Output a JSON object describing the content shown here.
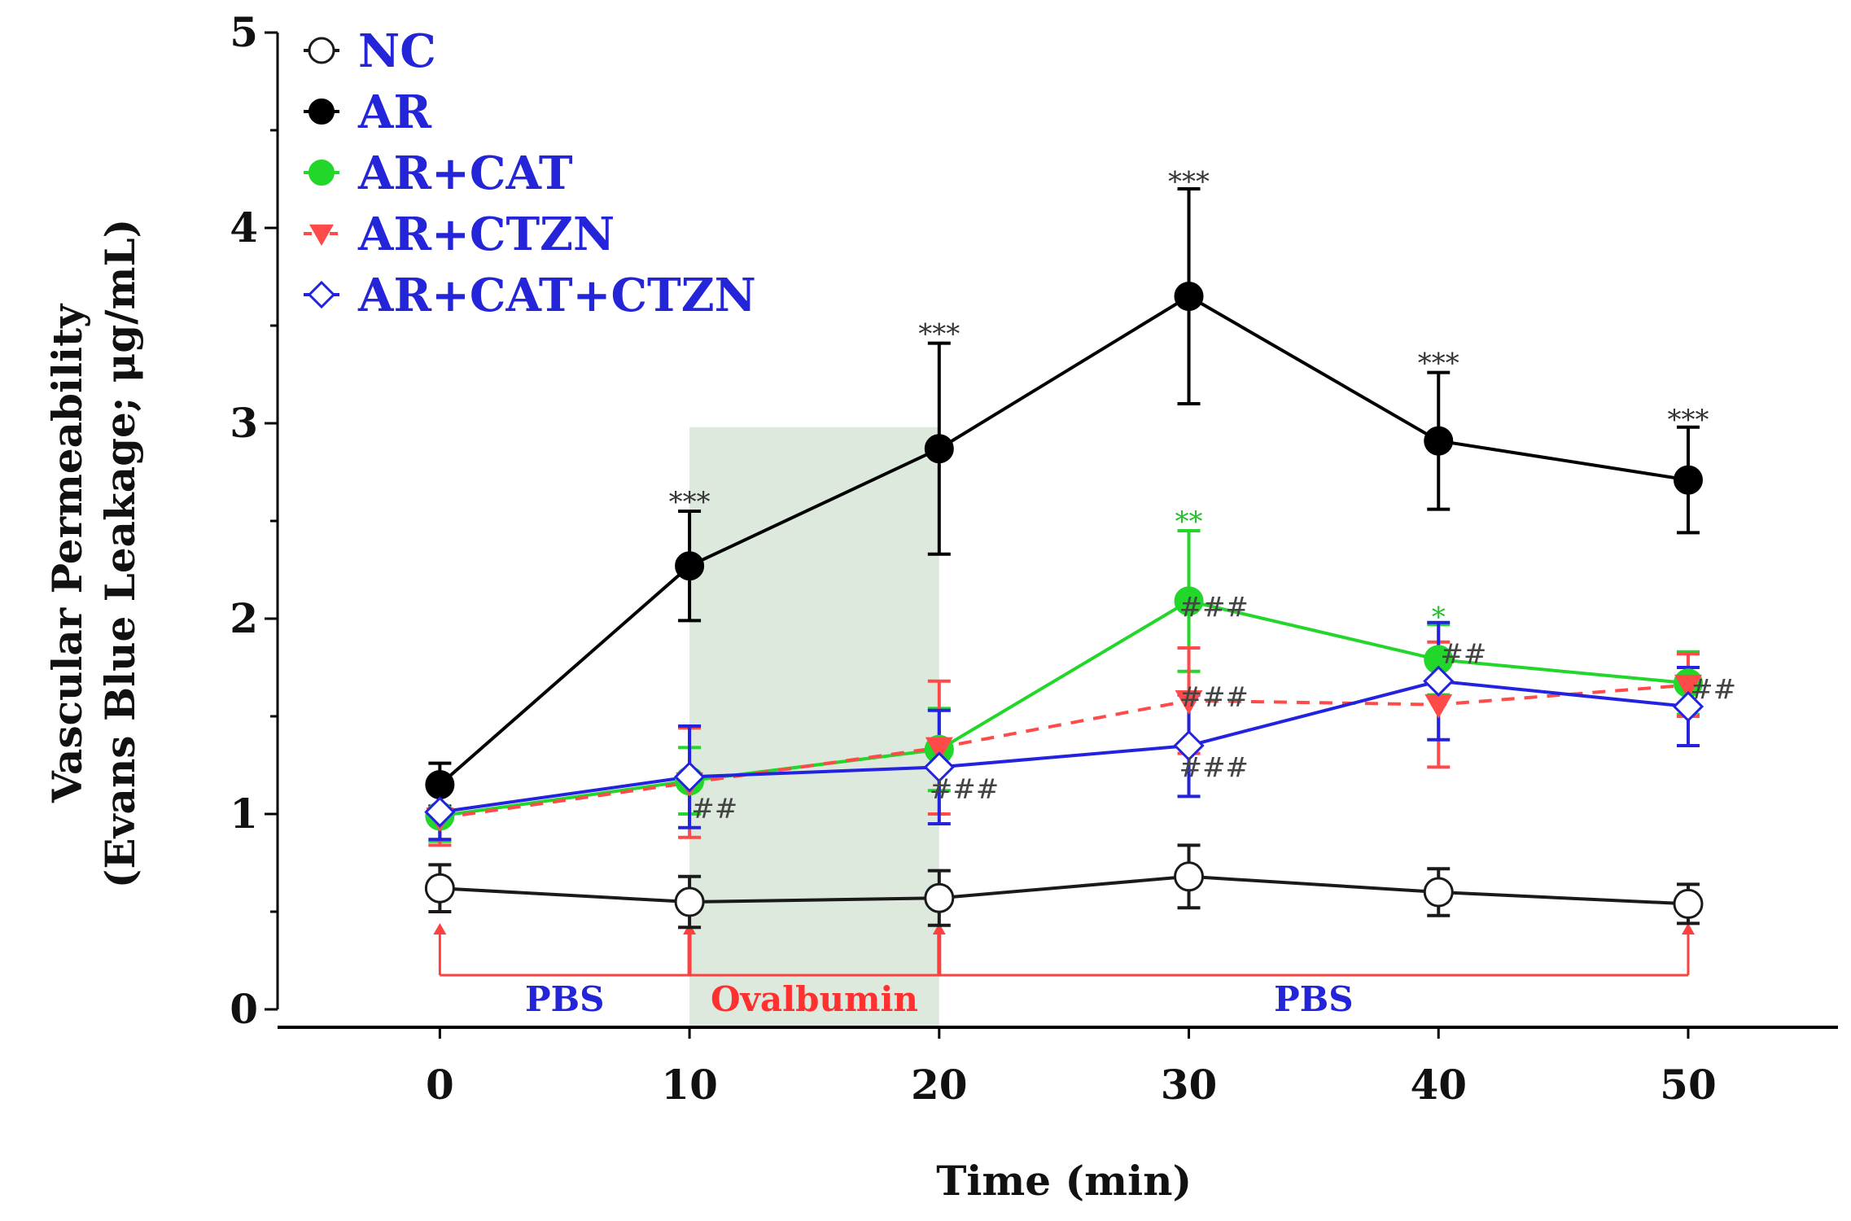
{
  "chart_data": {
    "type": "line",
    "title": "",
    "xlabel": "Time (min)",
    "ylabel_line1": "Vascular Permeability",
    "ylabel_line2": "(Evans Blue Leakage; μg/mL)",
    "x": [
      0,
      10,
      20,
      30,
      40,
      50
    ],
    "x_ticks": [
      "0",
      "10",
      "20",
      "30",
      "40",
      "50"
    ],
    "y_ticks": [
      "0",
      "1",
      "2",
      "3",
      "4",
      "5"
    ],
    "xlim": [
      -6.5,
      56
    ],
    "ylim": [
      0,
      5
    ],
    "shaded_region": {
      "x_start": 10,
      "x_end": 20,
      "y_top": 2.98,
      "color": "#dde9dc"
    },
    "series": [
      {
        "name": "NC",
        "color": "#1a1a1a",
        "marker": "circle-open",
        "line": "solid",
        "values": [
          0.62,
          0.55,
          0.57,
          0.68,
          0.6,
          0.54
        ],
        "errors": [
          0.12,
          0.13,
          0.14,
          0.16,
          0.12,
          0.1
        ]
      },
      {
        "name": "AR",
        "color": "#000000",
        "marker": "circle-filled",
        "line": "solid",
        "values": [
          1.15,
          2.27,
          2.87,
          3.65,
          2.91,
          2.71
        ],
        "errors": [
          0.11,
          0.28,
          0.54,
          0.55,
          0.35,
          0.27
        ]
      },
      {
        "name": "AR+CAT",
        "color": "#22d62a",
        "marker": "circle-filled",
        "line": "solid",
        "values": [
          0.99,
          1.17,
          1.33,
          2.09,
          1.79,
          1.67
        ],
        "errors": [
          0.13,
          0.17,
          0.21,
          0.36,
          0.18,
          0.16
        ]
      },
      {
        "name": "AR+CTZN",
        "color": "#ff4a4a",
        "marker": "triangle-down",
        "line": "dashed",
        "values": [
          0.98,
          1.16,
          1.34,
          1.58,
          1.56,
          1.66
        ],
        "errors": [
          0.14,
          0.28,
          0.34,
          0.27,
          0.32,
          0.16
        ]
      },
      {
        "name": "AR+CAT+CTZN",
        "color": "#2222e0",
        "marker": "diamond-open",
        "line": "solid",
        "values": [
          1.01,
          1.19,
          1.24,
          1.35,
          1.68,
          1.55
        ],
        "errors": [
          0.14,
          0.26,
          0.29,
          0.26,
          0.3,
          0.2
        ]
      }
    ],
    "legend": {
      "placement": "top-left",
      "color": "#2424d8",
      "labels": [
        "NC",
        "AR",
        "AR+CAT",
        "AR+CTZN",
        "AR+CAT+CTZN"
      ]
    },
    "significance": [
      {
        "text": "***",
        "x": 10,
        "y": 2.6,
        "color": "#333333"
      },
      {
        "text": "***",
        "x": 20,
        "y": 3.46,
        "color": "#333333"
      },
      {
        "text": "***",
        "x": 30,
        "y": 4.24,
        "color": "#333333"
      },
      {
        "text": "***",
        "x": 40,
        "y": 3.31,
        "color": "#333333"
      },
      {
        "text": "***",
        "x": 50,
        "y": 3.02,
        "color": "#333333"
      },
      {
        "text": "**",
        "x": 30,
        "y": 2.5,
        "color": "#22c02a"
      },
      {
        "text": "*",
        "x": 40,
        "y": 2.01,
        "color": "#22c02a"
      },
      {
        "text": "###",
        "x": 31,
        "y": 2.06,
        "color": "#444444"
      },
      {
        "text": "##",
        "x": 41,
        "y": 1.82,
        "color": "#444444"
      },
      {
        "text": "###",
        "x": 31,
        "y": 1.6,
        "color": "#444444"
      },
      {
        "text": "###",
        "x": 31,
        "y": 1.24,
        "color": "#444444"
      },
      {
        "text": "##",
        "x": 51,
        "y": 1.64,
        "color": "#444444"
      },
      {
        "text": "##",
        "x": 11,
        "y": 1.03,
        "color": "#444444"
      },
      {
        "text": "###",
        "x": 21,
        "y": 1.13,
        "color": "#444444"
      }
    ],
    "phases": [
      {
        "label": "PBS",
        "x_start": 0,
        "x_end": 10,
        "color": "#2424d8"
      },
      {
        "label": "Ovalbumin",
        "x_start": 10,
        "x_end": 20,
        "color": "#ff3030"
      },
      {
        "label": "PBS",
        "x_start": 20,
        "x_end": 50,
        "color": "#2424d8"
      }
    ],
    "arrows_at": [
      0,
      10,
      20,
      50
    ],
    "arrow_color": "#ff4040"
  }
}
